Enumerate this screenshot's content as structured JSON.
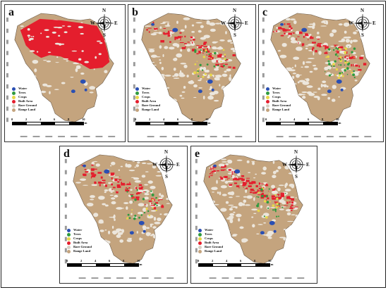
{
  "panels": [
    {
      "label": "a"
    },
    {
      "label": "b"
    },
    {
      "label": "c"
    },
    {
      "label": "d"
    },
    {
      "label": "e"
    }
  ],
  "legend": {
    "items": [
      {
        "name": "Water",
        "color": "#2a4fb3"
      },
      {
        "name": "Trees",
        "color": "#2f9a3f"
      },
      {
        "name": "Crops",
        "color": "#e8d74a"
      },
      {
        "name": "Built Area",
        "color": "#e41e2d"
      },
      {
        "name": "Bare Ground",
        "color": "#d7cfc3"
      },
      {
        "name": "Range Land",
        "color": "#c4a47e"
      }
    ]
  },
  "scale": {
    "ticks": [
      "0",
      "2",
      "4",
      "6",
      "8",
      "10 Km"
    ]
  },
  "compass": {
    "n": "N",
    "s": "S",
    "e": "E",
    "w": "W"
  },
  "colors": {
    "range_land": "#c4a47e",
    "built": "#e41e2d",
    "bare": "#ece6dc",
    "water": "#2a4fb3",
    "trees": "#2f9a3f",
    "crops": "#e8d74a"
  }
}
